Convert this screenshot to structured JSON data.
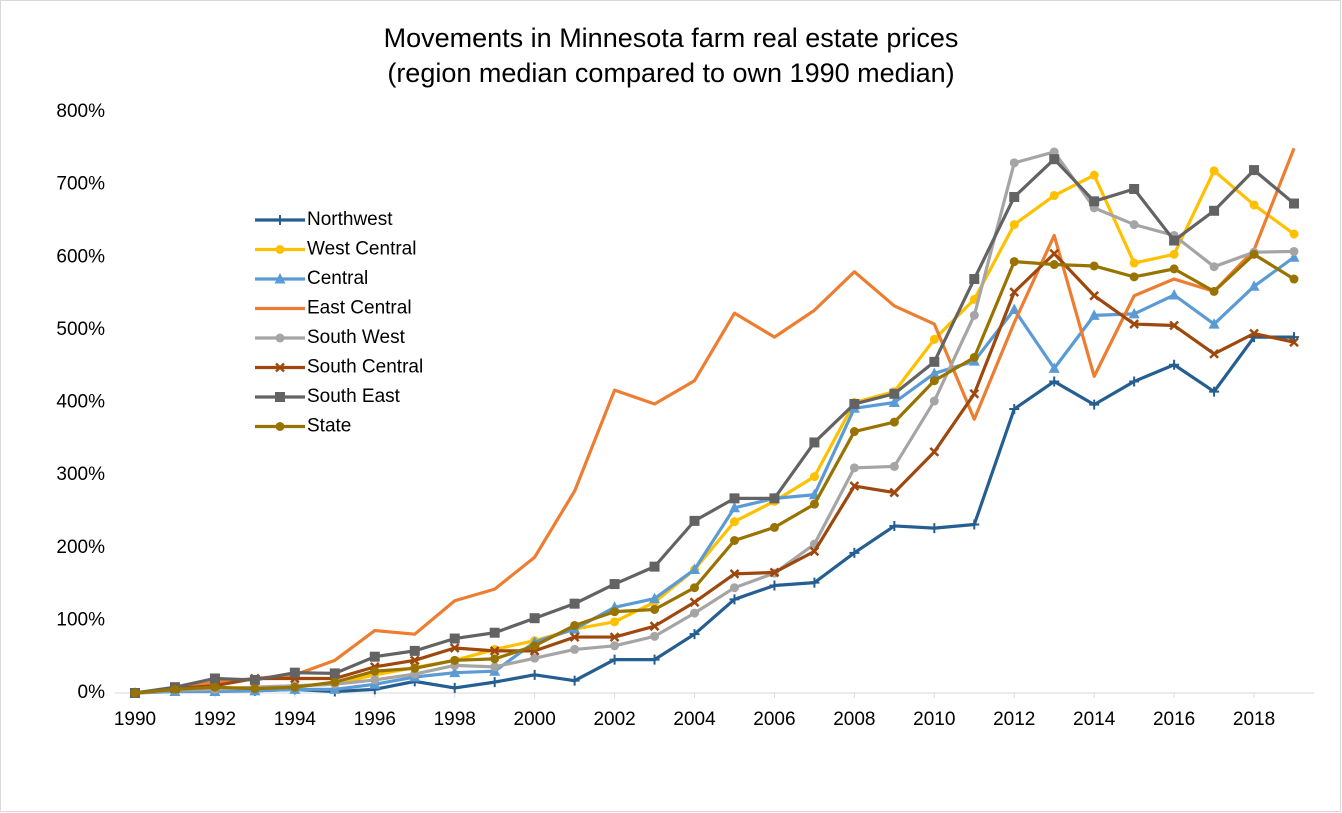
{
  "chart_data": {
    "type": "line",
    "title": [
      "Movements in Minnesota farm real estate prices",
      "(region median compared to own 1990 median)"
    ],
    "x": [
      1990,
      1991,
      1992,
      1993,
      1994,
      1995,
      1996,
      1997,
      1998,
      1999,
      2000,
      2001,
      2002,
      2003,
      2004,
      2005,
      2006,
      2007,
      2008,
      2009,
      2010,
      2011,
      2012,
      2013,
      2014,
      2015,
      2016,
      2017,
      2018,
      2019
    ],
    "xlim": [
      1989.5,
      2019.5
    ],
    "xticks": [
      1990,
      1992,
      1994,
      1996,
      1998,
      2000,
      2002,
      2004,
      2006,
      2008,
      2010,
      2012,
      2014,
      2016,
      2018
    ],
    "ylim": [
      0,
      800
    ],
    "yticks": [
      {
        "value": 0,
        "label": "0%"
      },
      {
        "value": 100,
        "label": "100%"
      },
      {
        "value": 200,
        "label": "200%"
      },
      {
        "value": 300,
        "label": "300%"
      },
      {
        "value": 400,
        "label": "400%"
      },
      {
        "value": 500,
        "label": "500%"
      },
      {
        "value": 600,
        "label": "600%"
      },
      {
        "value": 700,
        "label": "700%"
      },
      {
        "value": 800,
        "label": "800%"
      }
    ],
    "grid": false,
    "legend": "upper left",
    "series": [
      {
        "name": "Northwest",
        "color": "#255e91",
        "marker": "plus",
        "values": [
          0,
          3,
          3,
          3,
          5,
          2,
          5,
          16,
          7,
          15,
          25,
          17,
          46,
          46,
          81,
          129,
          148,
          152,
          193,
          230,
          227,
          232,
          391,
          429,
          397,
          429,
          452,
          415,
          490,
          490
        ]
      },
      {
        "name": "West Central",
        "color": "#ffc000",
        "marker": "circle",
        "values": [
          0,
          4,
          6,
          8,
          10,
          12,
          25,
          35,
          45,
          60,
          72,
          88,
          98,
          125,
          170,
          236,
          264,
          298,
          400,
          415,
          487,
          542,
          645,
          685,
          713,
          592,
          604,
          719,
          672,
          632
        ]
      },
      {
        "name": "Central",
        "color": "#5b9bd5",
        "marker": "triangle",
        "values": [
          0,
          2,
          2,
          3,
          5,
          5,
          12,
          22,
          28,
          30,
          70,
          88,
          118,
          130,
          170,
          255,
          268,
          273,
          392,
          400,
          440,
          457,
          528,
          447,
          520,
          522,
          548,
          508,
          560,
          600
        ]
      },
      {
        "name": "East Central",
        "color": "#ed7d31",
        "marker": "none",
        "values": [
          0,
          5,
          15,
          20,
          25,
          45,
          86,
          81,
          127,
          143,
          187,
          278,
          417,
          398,
          430,
          523,
          490,
          527,
          580,
          533,
          508,
          377,
          510,
          630,
          436,
          547,
          570,
          553,
          610,
          750
        ]
      },
      {
        "name": "South West",
        "color": "#a5a5a5",
        "marker": "circle",
        "values": [
          0,
          4,
          5,
          8,
          10,
          12,
          18,
          26,
          38,
          36,
          48,
          60,
          65,
          78,
          110,
          145,
          165,
          205,
          310,
          312,
          402,
          520,
          730,
          745,
          668,
          645,
          630,
          587,
          607,
          608
        ]
      },
      {
        "name": "South Central",
        "color": "#9e480e",
        "marker": "cross",
        "values": [
          0,
          6,
          10,
          20,
          20,
          20,
          36,
          45,
          62,
          58,
          58,
          77,
          77,
          92,
          125,
          164,
          166,
          195,
          285,
          276,
          332,
          412,
          552,
          605,
          547,
          508,
          506,
          467,
          495,
          483
        ]
      },
      {
        "name": "South East",
        "color": "#636363",
        "marker": "square",
        "values": [
          0,
          8,
          20,
          18,
          28,
          27,
          50,
          58,
          75,
          83,
          103,
          123,
          150,
          174,
          237,
          268,
          268,
          345,
          398,
          412,
          456,
          570,
          683,
          735,
          677,
          694,
          623,
          664,
          720,
          674
        ]
      },
      {
        "name": "State",
        "color": "#997300",
        "marker": "circle",
        "values": [
          0,
          5,
          8,
          6,
          8,
          15,
          30,
          34,
          45,
          47,
          65,
          93,
          112,
          115,
          145,
          210,
          228,
          260,
          360,
          373,
          430,
          462,
          594,
          590,
          588,
          573,
          584,
          553,
          604,
          570
        ]
      }
    ]
  }
}
